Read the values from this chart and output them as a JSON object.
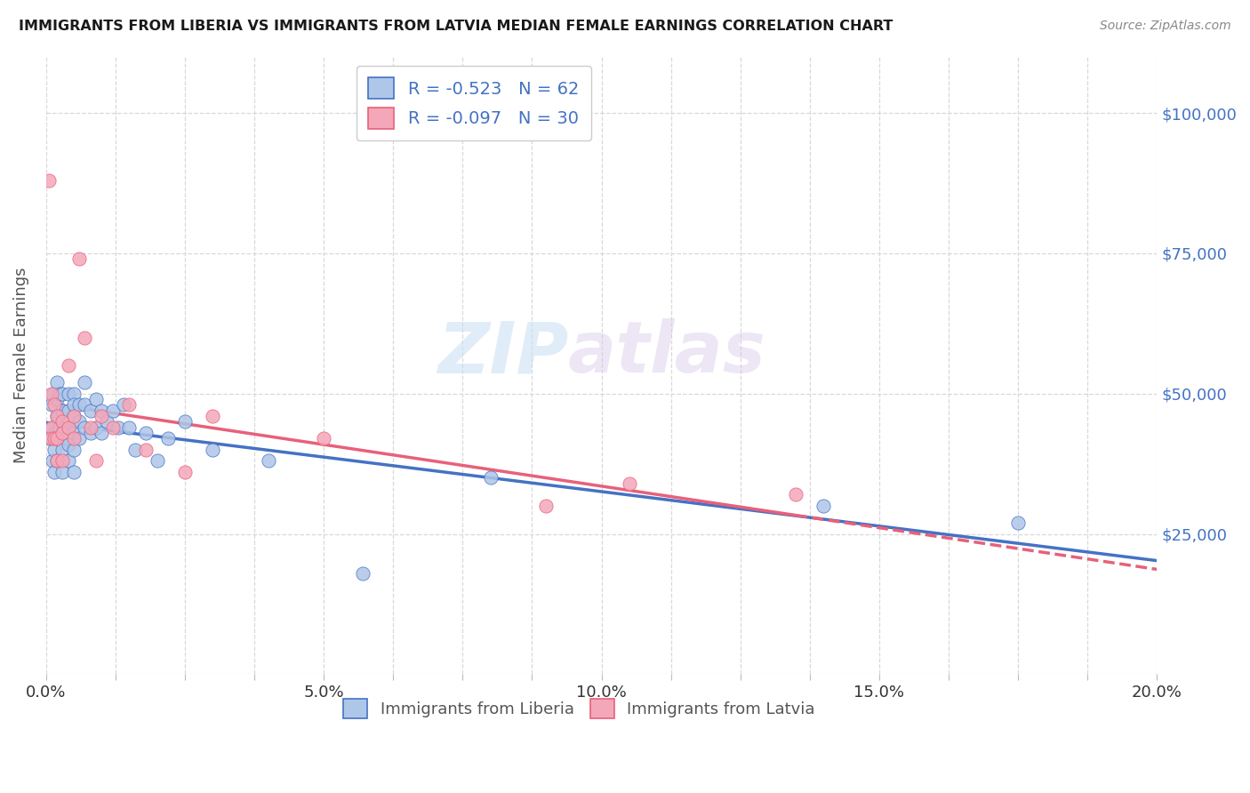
{
  "title": "IMMIGRANTS FROM LIBERIA VS IMMIGRANTS FROM LATVIA MEDIAN FEMALE EARNINGS CORRELATION CHART",
  "source": "Source: ZipAtlas.com",
  "ylabel": "Median Female Earnings",
  "xmin": 0.0,
  "xmax": 0.2,
  "ymin": 0,
  "ymax": 110000,
  "yticks": [
    0,
    25000,
    50000,
    75000,
    100000
  ],
  "ytick_labels": [
    "",
    "$25,000",
    "$50,000",
    "$75,000",
    "$100,000"
  ],
  "liberia_color": "#aec6e8",
  "latvia_color": "#f4a7b9",
  "liberia_line_color": "#4472c4",
  "latvia_line_color": "#e8607a",
  "R_liberia": -0.523,
  "N_liberia": 62,
  "R_latvia": -0.097,
  "N_latvia": 30,
  "watermark_zip": "ZIP",
  "watermark_atlas": "atlas",
  "background_color": "#ffffff",
  "grid_color": "#d8d8d8",
  "liberia_x": [
    0.0005,
    0.001,
    0.001,
    0.0012,
    0.0013,
    0.0015,
    0.0015,
    0.0017,
    0.002,
    0.002,
    0.002,
    0.002,
    0.002,
    0.0023,
    0.0025,
    0.0025,
    0.003,
    0.003,
    0.003,
    0.003,
    0.003,
    0.003,
    0.0035,
    0.004,
    0.004,
    0.004,
    0.004,
    0.004,
    0.005,
    0.005,
    0.005,
    0.005,
    0.005,
    0.005,
    0.006,
    0.006,
    0.006,
    0.007,
    0.007,
    0.007,
    0.008,
    0.008,
    0.009,
    0.009,
    0.01,
    0.01,
    0.011,
    0.012,
    0.013,
    0.014,
    0.015,
    0.016,
    0.018,
    0.02,
    0.022,
    0.025,
    0.03,
    0.04,
    0.057,
    0.08,
    0.14,
    0.175
  ],
  "liberia_y": [
    42000,
    48000,
    44000,
    38000,
    50000,
    40000,
    36000,
    43000,
    46000,
    49000,
    52000,
    42000,
    38000,
    46000,
    50000,
    44000,
    47000,
    50000,
    43000,
    47000,
    40000,
    36000,
    42000,
    47000,
    50000,
    44000,
    41000,
    38000,
    50000,
    46000,
    48000,
    43000,
    40000,
    36000,
    48000,
    45000,
    42000,
    52000,
    48000,
    44000,
    47000,
    43000,
    49000,
    44000,
    47000,
    43000,
    45000,
    47000,
    44000,
    48000,
    44000,
    40000,
    43000,
    38000,
    42000,
    45000,
    40000,
    38000,
    18000,
    35000,
    30000,
    27000
  ],
  "latvia_x": [
    0.0005,
    0.001,
    0.001,
    0.001,
    0.0015,
    0.0015,
    0.002,
    0.002,
    0.002,
    0.003,
    0.003,
    0.003,
    0.004,
    0.004,
    0.005,
    0.005,
    0.006,
    0.007,
    0.008,
    0.009,
    0.01,
    0.012,
    0.015,
    0.018,
    0.025,
    0.03,
    0.05,
    0.09,
    0.105,
    0.135
  ],
  "latvia_y": [
    88000,
    50000,
    44000,
    42000,
    48000,
    42000,
    46000,
    42000,
    38000,
    45000,
    43000,
    38000,
    55000,
    44000,
    46000,
    42000,
    74000,
    60000,
    44000,
    38000,
    46000,
    44000,
    48000,
    40000,
    36000,
    46000,
    42000,
    30000,
    34000,
    32000
  ]
}
